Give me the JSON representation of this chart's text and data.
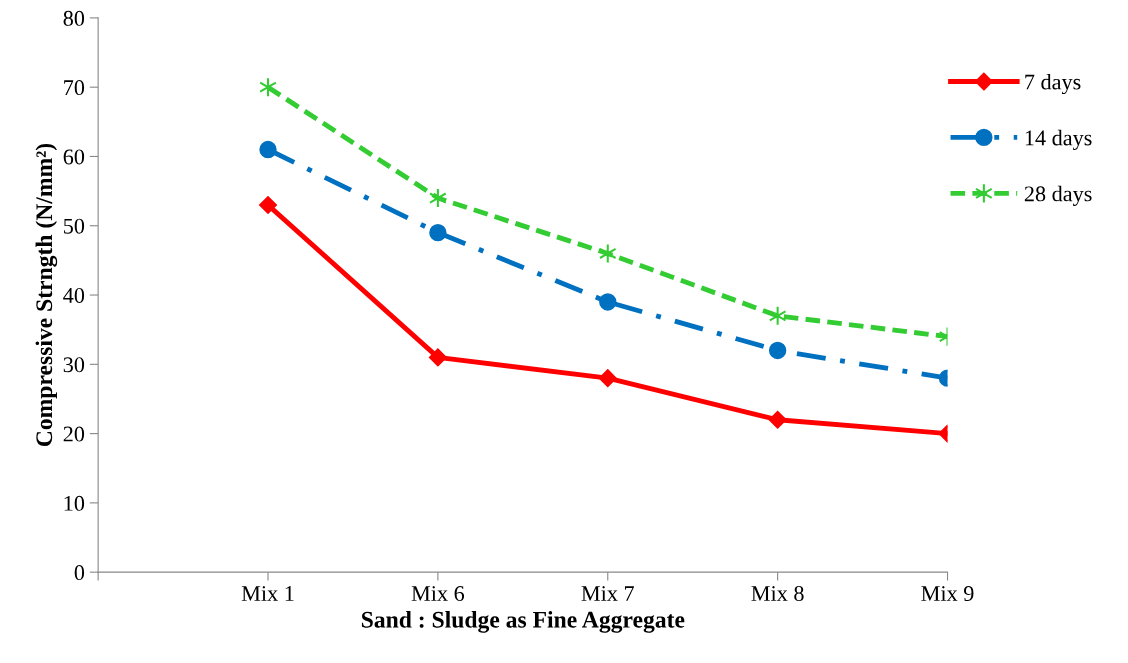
{
  "chart_data": {
    "type": "line",
    "xlabel": "Sand : Sludge as Fine Aggregate",
    "ylabel": "Compressive Strngth (N/mm²)",
    "categories": [
      null,
      "Mix 1",
      "Mix 6",
      "Mix 7",
      "Mix 8",
      "Mix 9"
    ],
    "series": [
      {
        "name": "7 days",
        "color": "#ff0000",
        "values": [
          null,
          53,
          31,
          28,
          22,
          20
        ],
        "marker": "diamond",
        "line_style": "solid"
      },
      {
        "name": "14 days",
        "color": "#0070c0",
        "values": [
          null,
          61,
          49,
          39,
          32,
          28
        ],
        "marker": "circle",
        "line_style": "dashdot"
      },
      {
        "name": "28 days",
        "color": "#33cc33",
        "values": [
          null,
          70,
          54,
          46,
          37,
          34
        ],
        "marker": "cross",
        "line_style": "dashed"
      }
    ],
    "ylim": [
      0,
      80
    ],
    "yticks": [
      0,
      10,
      20,
      30,
      40,
      50,
      60,
      70,
      80
    ],
    "grid": false,
    "legend": "right"
  }
}
